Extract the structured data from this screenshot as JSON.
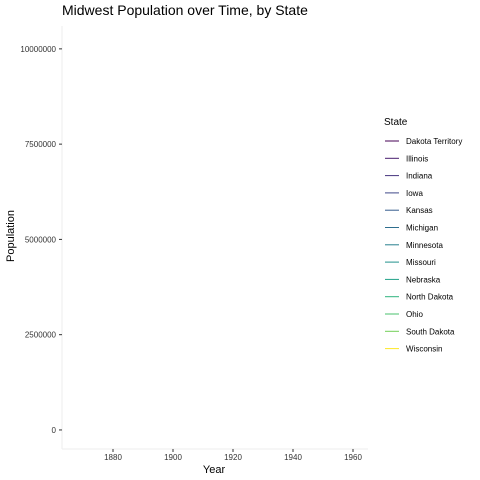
{
  "chart_data": {
    "type": "line",
    "title": "Midwest Population over Time, by State",
    "xlabel": "Year",
    "ylabel": "Population",
    "x_ticks": [
      1880,
      1900,
      1920,
      1940,
      1960
    ],
    "y_ticks": [
      0,
      2500000,
      5000000,
      7500000,
      10000000
    ],
    "y_tick_labels": [
      "0",
      "2500000",
      "5000000",
      "7500000",
      "10000000"
    ],
    "xlim": [
      1863,
      1965
    ],
    "ylim": [
      -500000,
      10600000
    ],
    "grid": false,
    "legend": {
      "title": "State",
      "placement": "right"
    },
    "series": [
      {
        "name": "Dakota Territory",
        "color": "#440154",
        "x": [],
        "y": []
      },
      {
        "name": "Illinois",
        "color": "#481b6d",
        "x": [],
        "y": []
      },
      {
        "name": "Indiana",
        "color": "#46337e",
        "x": [],
        "y": []
      },
      {
        "name": "Iowa",
        "color": "#3f4889",
        "x": [],
        "y": []
      },
      {
        "name": "Kansas",
        "color": "#365c8d",
        "x": [],
        "y": []
      },
      {
        "name": "Michigan",
        "color": "#2e6e8e",
        "x": [],
        "y": []
      },
      {
        "name": "Minnesota",
        "color": "#277f8e",
        "x": [],
        "y": []
      },
      {
        "name": "Missouri",
        "color": "#21918c",
        "x": [],
        "y": []
      },
      {
        "name": "Nebraska",
        "color": "#1fa187",
        "x": [],
        "y": []
      },
      {
        "name": "North Dakota",
        "color": "#2db27d",
        "x": [],
        "y": []
      },
      {
        "name": "Ohio",
        "color": "#4ac16d",
        "x": [],
        "y": []
      },
      {
        "name": "South Dakota",
        "color": "#71cf57",
        "x": [],
        "y": []
      },
      {
        "name": "Wisconsin",
        "color": "#fde725",
        "x": [],
        "y": []
      }
    ]
  }
}
